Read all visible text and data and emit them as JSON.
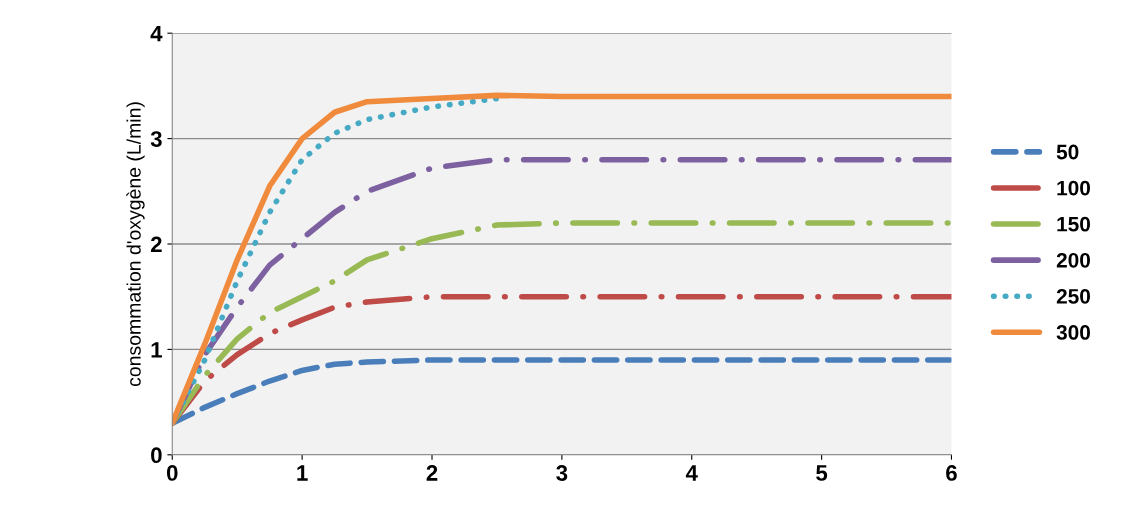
{
  "chart_data": {
    "type": "line",
    "ylabel": "consommation d'oxygène (L/min)",
    "x": [
      0,
      0.25,
      0.5,
      0.75,
      1,
      1.25,
      1.5,
      2,
      2.5,
      3,
      4,
      5,
      6
    ],
    "series": [
      {
        "name": "50",
        "color": "#4a7ebb",
        "line_style": "dashed",
        "values": [
          0.3,
          0.45,
          0.58,
          0.7,
          0.8,
          0.86,
          0.88,
          0.9,
          0.9,
          0.9,
          0.9,
          0.9,
          0.9
        ]
      },
      {
        "name": "100",
        "color": "#be4b48",
        "line_style": "dashdot",
        "values": [
          0.3,
          0.7,
          0.95,
          1.15,
          1.28,
          1.4,
          1.45,
          1.5,
          1.5,
          1.5,
          1.5,
          1.5,
          1.5
        ]
      },
      {
        "name": "150",
        "color": "#98b954",
        "line_style": "dashdot",
        "values": [
          0.3,
          0.75,
          1.1,
          1.35,
          1.5,
          1.65,
          1.85,
          2.05,
          2.18,
          2.2,
          2.2,
          2.2,
          2.2
        ]
      },
      {
        "name": "200",
        "color": "#7d60a0",
        "line_style": "dashdot",
        "values": [
          0.3,
          0.95,
          1.4,
          1.8,
          2.05,
          2.3,
          2.5,
          2.72,
          2.8,
          2.8,
          2.8,
          2.8,
          2.8
        ]
      },
      {
        "name": "250",
        "color": "#46aac5",
        "line_style": "dotted",
        "values": [
          0.3,
          0.9,
          1.65,
          2.3,
          2.8,
          3.05,
          3.18,
          3.3,
          3.38,
          null,
          null,
          null,
          null
        ]
      },
      {
        "name": "300",
        "color": "#f08a3c",
        "line_style": "solid",
        "values": [
          0.3,
          1.05,
          1.85,
          2.55,
          3.0,
          3.25,
          3.35,
          3.38,
          3.41,
          3.4,
          3.4,
          3.4,
          3.4
        ]
      }
    ],
    "xlim": [
      0,
      6
    ],
    "xticks": [
      0,
      1,
      2,
      3,
      4,
      5,
      6
    ],
    "ylim": [
      0,
      4
    ],
    "yticks": [
      0,
      1,
      2,
      3,
      4
    ],
    "grid": "y",
    "legend": "right",
    "marker": "none"
  }
}
